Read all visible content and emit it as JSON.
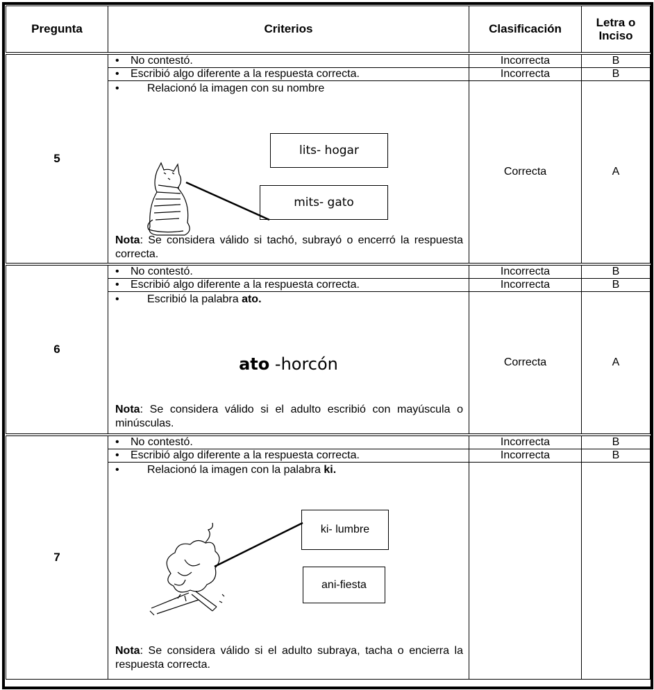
{
  "table": {
    "headers": [
      "Pregunta",
      "Criterios",
      "Clasificación",
      "Letra o Inciso"
    ],
    "groups": [
      {
        "pregunta": "5",
        "rows": [
          {
            "criterio": "No contestó.",
            "clasificacion": "Incorrecta",
            "letra": "B"
          },
          {
            "criterio": "Escribió algo diferente a la respuesta correcta.",
            "clasificacion": "Incorrecta",
            "letra": "B"
          },
          {
            "criterio": "Relacionó  la imagen con su nombre",
            "options": [
              "lits- hogar",
              "mits- gato"
            ],
            "nota_label": "Nota",
            "nota": ": Se considera válido si tachó, subrayó o encerró la respuesta correcta.",
            "clasificacion": "Correcta",
            "letra": "A"
          }
        ]
      },
      {
        "pregunta": "6",
        "rows": [
          {
            "criterio": "No contestó.",
            "clasificacion": "Incorrecta",
            "letra": "B"
          },
          {
            "criterio": "Escribió algo diferente a la respuesta correcta.",
            "clasificacion": "Incorrecta",
            "letra": "B"
          },
          {
            "criterio": "Escribió la palabra",
            "criterio_bold": "ato.",
            "example_bold": "ato",
            "example": "-horcón",
            "nota_label": "Nota",
            "nota": ":  Se considera válido si el adulto escribió con mayúscula o minúsculas.",
            "clasificacion": "Correcta",
            "letra": "A"
          }
        ]
      },
      {
        "pregunta": "7",
        "rows": [
          {
            "criterio": "No contestó.",
            "clasificacion": "Incorrecta",
            "letra": "B"
          },
          {
            "criterio": "Escribió algo diferente a la respuesta correcta.",
            "clasificacion": "Incorrecta",
            "letra": "B"
          },
          {
            "criterio": "Relacionó la imagen con la palabra",
            "criterio_bold": "ki.",
            "options": [
              "ki- lumbre",
              "ani-fiesta"
            ],
            "nota_label": "Nota",
            "nota": ": Se considera  válido  si el adulto subraya, tacha  o encierra la respuesta correcta."
          }
        ]
      }
    ]
  }
}
